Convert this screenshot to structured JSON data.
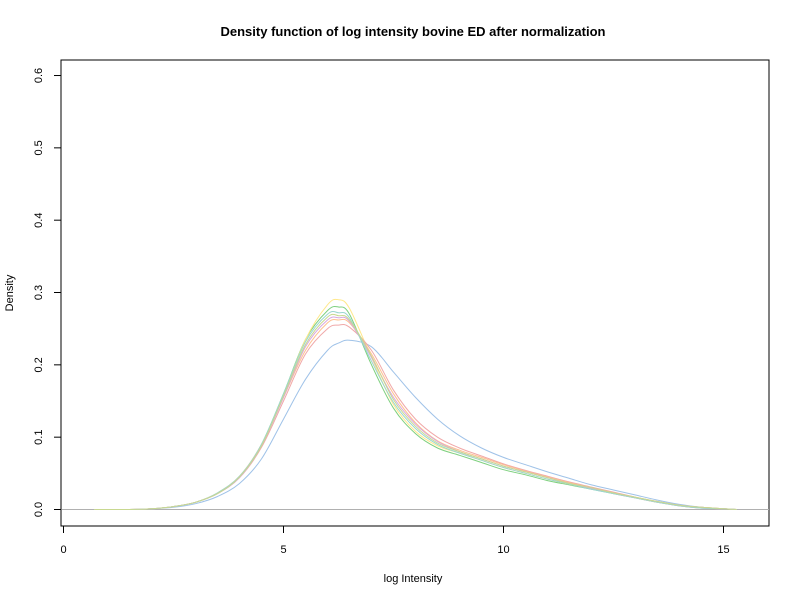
{
  "chart_data": {
    "type": "line",
    "title": "Density function of log intensity bovine ED after normalization",
    "xlabel": "log Intensity",
    "ylabel": "Density",
    "xlim": [
      0,
      16
    ],
    "ylim": [
      0,
      0.6
    ],
    "xticks": [
      "0",
      "5",
      "10",
      "15"
    ],
    "yticks": [
      "0.0",
      "0.1",
      "0.2",
      "0.3",
      "0.4",
      "0.5",
      "0.6"
    ],
    "grid": false,
    "legend": "none",
    "series": [
      {
        "color": "#7ed07e",
        "x": [
          0.7,
          1.5,
          2.0,
          2.5,
          3.0,
          3.5,
          4.0,
          4.5,
          5.0,
          5.5,
          6.0,
          6.25,
          6.5,
          7.0,
          7.5,
          8.0,
          8.5,
          9.0,
          9.5,
          10.0,
          10.5,
          11.0,
          11.5,
          12.0,
          12.5,
          13.0,
          13.5,
          14.0,
          14.5,
          15.0,
          15.3
        ],
        "y": [
          0,
          0,
          0.001,
          0.004,
          0.01,
          0.022,
          0.045,
          0.09,
          0.16,
          0.235,
          0.275,
          0.28,
          0.27,
          0.2,
          0.14,
          0.105,
          0.085,
          0.075,
          0.065,
          0.055,
          0.048,
          0.04,
          0.034,
          0.028,
          0.022,
          0.016,
          0.01,
          0.006,
          0.003,
          0.001,
          0
        ]
      },
      {
        "color": "#ffe88a",
        "x": [
          0.7,
          1.5,
          2.0,
          2.5,
          3.0,
          3.5,
          4.0,
          4.5,
          5.0,
          5.5,
          6.0,
          6.25,
          6.5,
          7.0,
          7.5,
          8.0,
          8.5,
          9.0,
          9.5,
          10.0,
          10.5,
          11.0,
          11.5,
          12.0,
          12.5,
          13.0,
          13.5,
          14.0,
          14.5,
          15.0,
          15.3
        ],
        "y": [
          0,
          0,
          0.001,
          0.004,
          0.01,
          0.022,
          0.045,
          0.088,
          0.158,
          0.235,
          0.283,
          0.29,
          0.278,
          0.21,
          0.145,
          0.108,
          0.088,
          0.078,
          0.068,
          0.058,
          0.05,
          0.042,
          0.035,
          0.029,
          0.023,
          0.017,
          0.011,
          0.006,
          0.003,
          0.001,
          0
        ]
      },
      {
        "color": "#9fc2e8",
        "x": [
          0.7,
          1.5,
          2.0,
          2.5,
          3.0,
          3.5,
          4.0,
          4.5,
          5.0,
          5.5,
          6.0,
          6.25,
          6.5,
          7.0,
          7.5,
          8.0,
          8.5,
          9.0,
          9.5,
          10.0,
          10.5,
          11.0,
          11.5,
          12.0,
          12.5,
          13.0,
          13.5,
          14.0,
          14.5,
          15.0,
          15.3
        ],
        "y": [
          0,
          0,
          0.001,
          0.003,
          0.008,
          0.018,
          0.036,
          0.07,
          0.125,
          0.18,
          0.22,
          0.23,
          0.234,
          0.225,
          0.19,
          0.155,
          0.125,
          0.102,
          0.085,
          0.072,
          0.062,
          0.052,
          0.043,
          0.034,
          0.027,
          0.02,
          0.013,
          0.007,
          0.003,
          0.001,
          0
        ]
      },
      {
        "color": "#f0a8a8",
        "x": [
          0.7,
          1.5,
          2.0,
          2.5,
          3.0,
          3.5,
          4.0,
          4.5,
          5.0,
          5.5,
          6.0,
          6.25,
          6.5,
          7.0,
          7.5,
          8.0,
          8.5,
          9.0,
          9.5,
          10.0,
          10.5,
          11.0,
          11.5,
          12.0,
          12.5,
          13.0,
          13.5,
          14.0,
          14.5,
          15.0,
          15.3
        ],
        "y": [
          0,
          0,
          0.001,
          0.004,
          0.01,
          0.022,
          0.044,
          0.086,
          0.15,
          0.215,
          0.25,
          0.255,
          0.252,
          0.22,
          0.165,
          0.125,
          0.1,
          0.085,
          0.074,
          0.063,
          0.054,
          0.046,
          0.038,
          0.031,
          0.024,
          0.017,
          0.011,
          0.006,
          0.003,
          0.001,
          0
        ]
      },
      {
        "color": "#ffc090",
        "x": [
          0.7,
          1.5,
          2.0,
          2.5,
          3.0,
          3.5,
          4.0,
          4.5,
          5.0,
          5.5,
          6.0,
          6.25,
          6.5,
          7.0,
          7.5,
          8.0,
          8.5,
          9.0,
          9.5,
          10.0,
          10.5,
          11.0,
          11.5,
          12.0,
          12.5,
          13.0,
          13.5,
          14.0,
          14.5,
          15.0,
          15.3
        ],
        "y": [
          0,
          0,
          0.001,
          0.004,
          0.01,
          0.023,
          0.046,
          0.09,
          0.155,
          0.22,
          0.258,
          0.262,
          0.258,
          0.215,
          0.16,
          0.12,
          0.095,
          0.082,
          0.072,
          0.062,
          0.053,
          0.045,
          0.037,
          0.03,
          0.023,
          0.016,
          0.01,
          0.005,
          0.002,
          0.001,
          0
        ]
      },
      {
        "color": "#d8a8e0",
        "x": [
          0.7,
          1.5,
          2.0,
          2.5,
          3.0,
          3.5,
          4.0,
          4.5,
          5.0,
          5.5,
          6.0,
          6.25,
          6.5,
          7.0,
          7.5,
          8.0,
          8.5,
          9.0,
          9.5,
          10.0,
          10.5,
          11.0,
          11.5,
          12.0,
          12.5,
          13.0,
          13.5,
          14.0,
          14.5,
          15.0,
          15.3
        ],
        "y": [
          0,
          0,
          0.001,
          0.004,
          0.01,
          0.022,
          0.044,
          0.088,
          0.155,
          0.225,
          0.262,
          0.265,
          0.26,
          0.21,
          0.155,
          0.118,
          0.094,
          0.08,
          0.07,
          0.06,
          0.052,
          0.044,
          0.036,
          0.029,
          0.022,
          0.016,
          0.01,
          0.005,
          0.002,
          0.001,
          0
        ]
      },
      {
        "color": "#9ad6d0",
        "x": [
          0.7,
          1.5,
          2.0,
          2.5,
          3.0,
          3.5,
          4.0,
          4.5,
          5.0,
          5.5,
          6.0,
          6.25,
          6.5,
          7.0,
          7.5,
          8.0,
          8.5,
          9.0,
          9.5,
          10.0,
          10.5,
          11.0,
          11.5,
          12.0,
          12.5,
          13.0,
          13.5,
          14.0,
          14.5,
          15.0,
          15.3
        ],
        "y": [
          0,
          0,
          0.001,
          0.004,
          0.01,
          0.023,
          0.046,
          0.09,
          0.16,
          0.232,
          0.27,
          0.272,
          0.265,
          0.205,
          0.148,
          0.112,
          0.09,
          0.078,
          0.068,
          0.058,
          0.05,
          0.042,
          0.035,
          0.028,
          0.022,
          0.016,
          0.01,
          0.005,
          0.002,
          0.001,
          0
        ]
      },
      {
        "color": "#c8d890",
        "x": [
          0.7,
          1.5,
          2.0,
          2.5,
          3.0,
          3.5,
          4.0,
          4.5,
          5.0,
          5.5,
          6.0,
          6.25,
          6.5,
          7.0,
          7.5,
          8.0,
          8.5,
          9.0,
          9.5,
          10.0,
          10.5,
          11.0,
          11.5,
          12.0,
          12.5,
          13.0,
          13.5,
          14.0,
          14.5,
          15.0,
          15.3
        ],
        "y": [
          0,
          0,
          0.001,
          0.004,
          0.01,
          0.022,
          0.045,
          0.088,
          0.157,
          0.228,
          0.266,
          0.268,
          0.262,
          0.212,
          0.152,
          0.115,
          0.092,
          0.08,
          0.07,
          0.06,
          0.052,
          0.044,
          0.036,
          0.03,
          0.023,
          0.017,
          0.011,
          0.006,
          0.003,
          0.001,
          0
        ]
      }
    ]
  }
}
